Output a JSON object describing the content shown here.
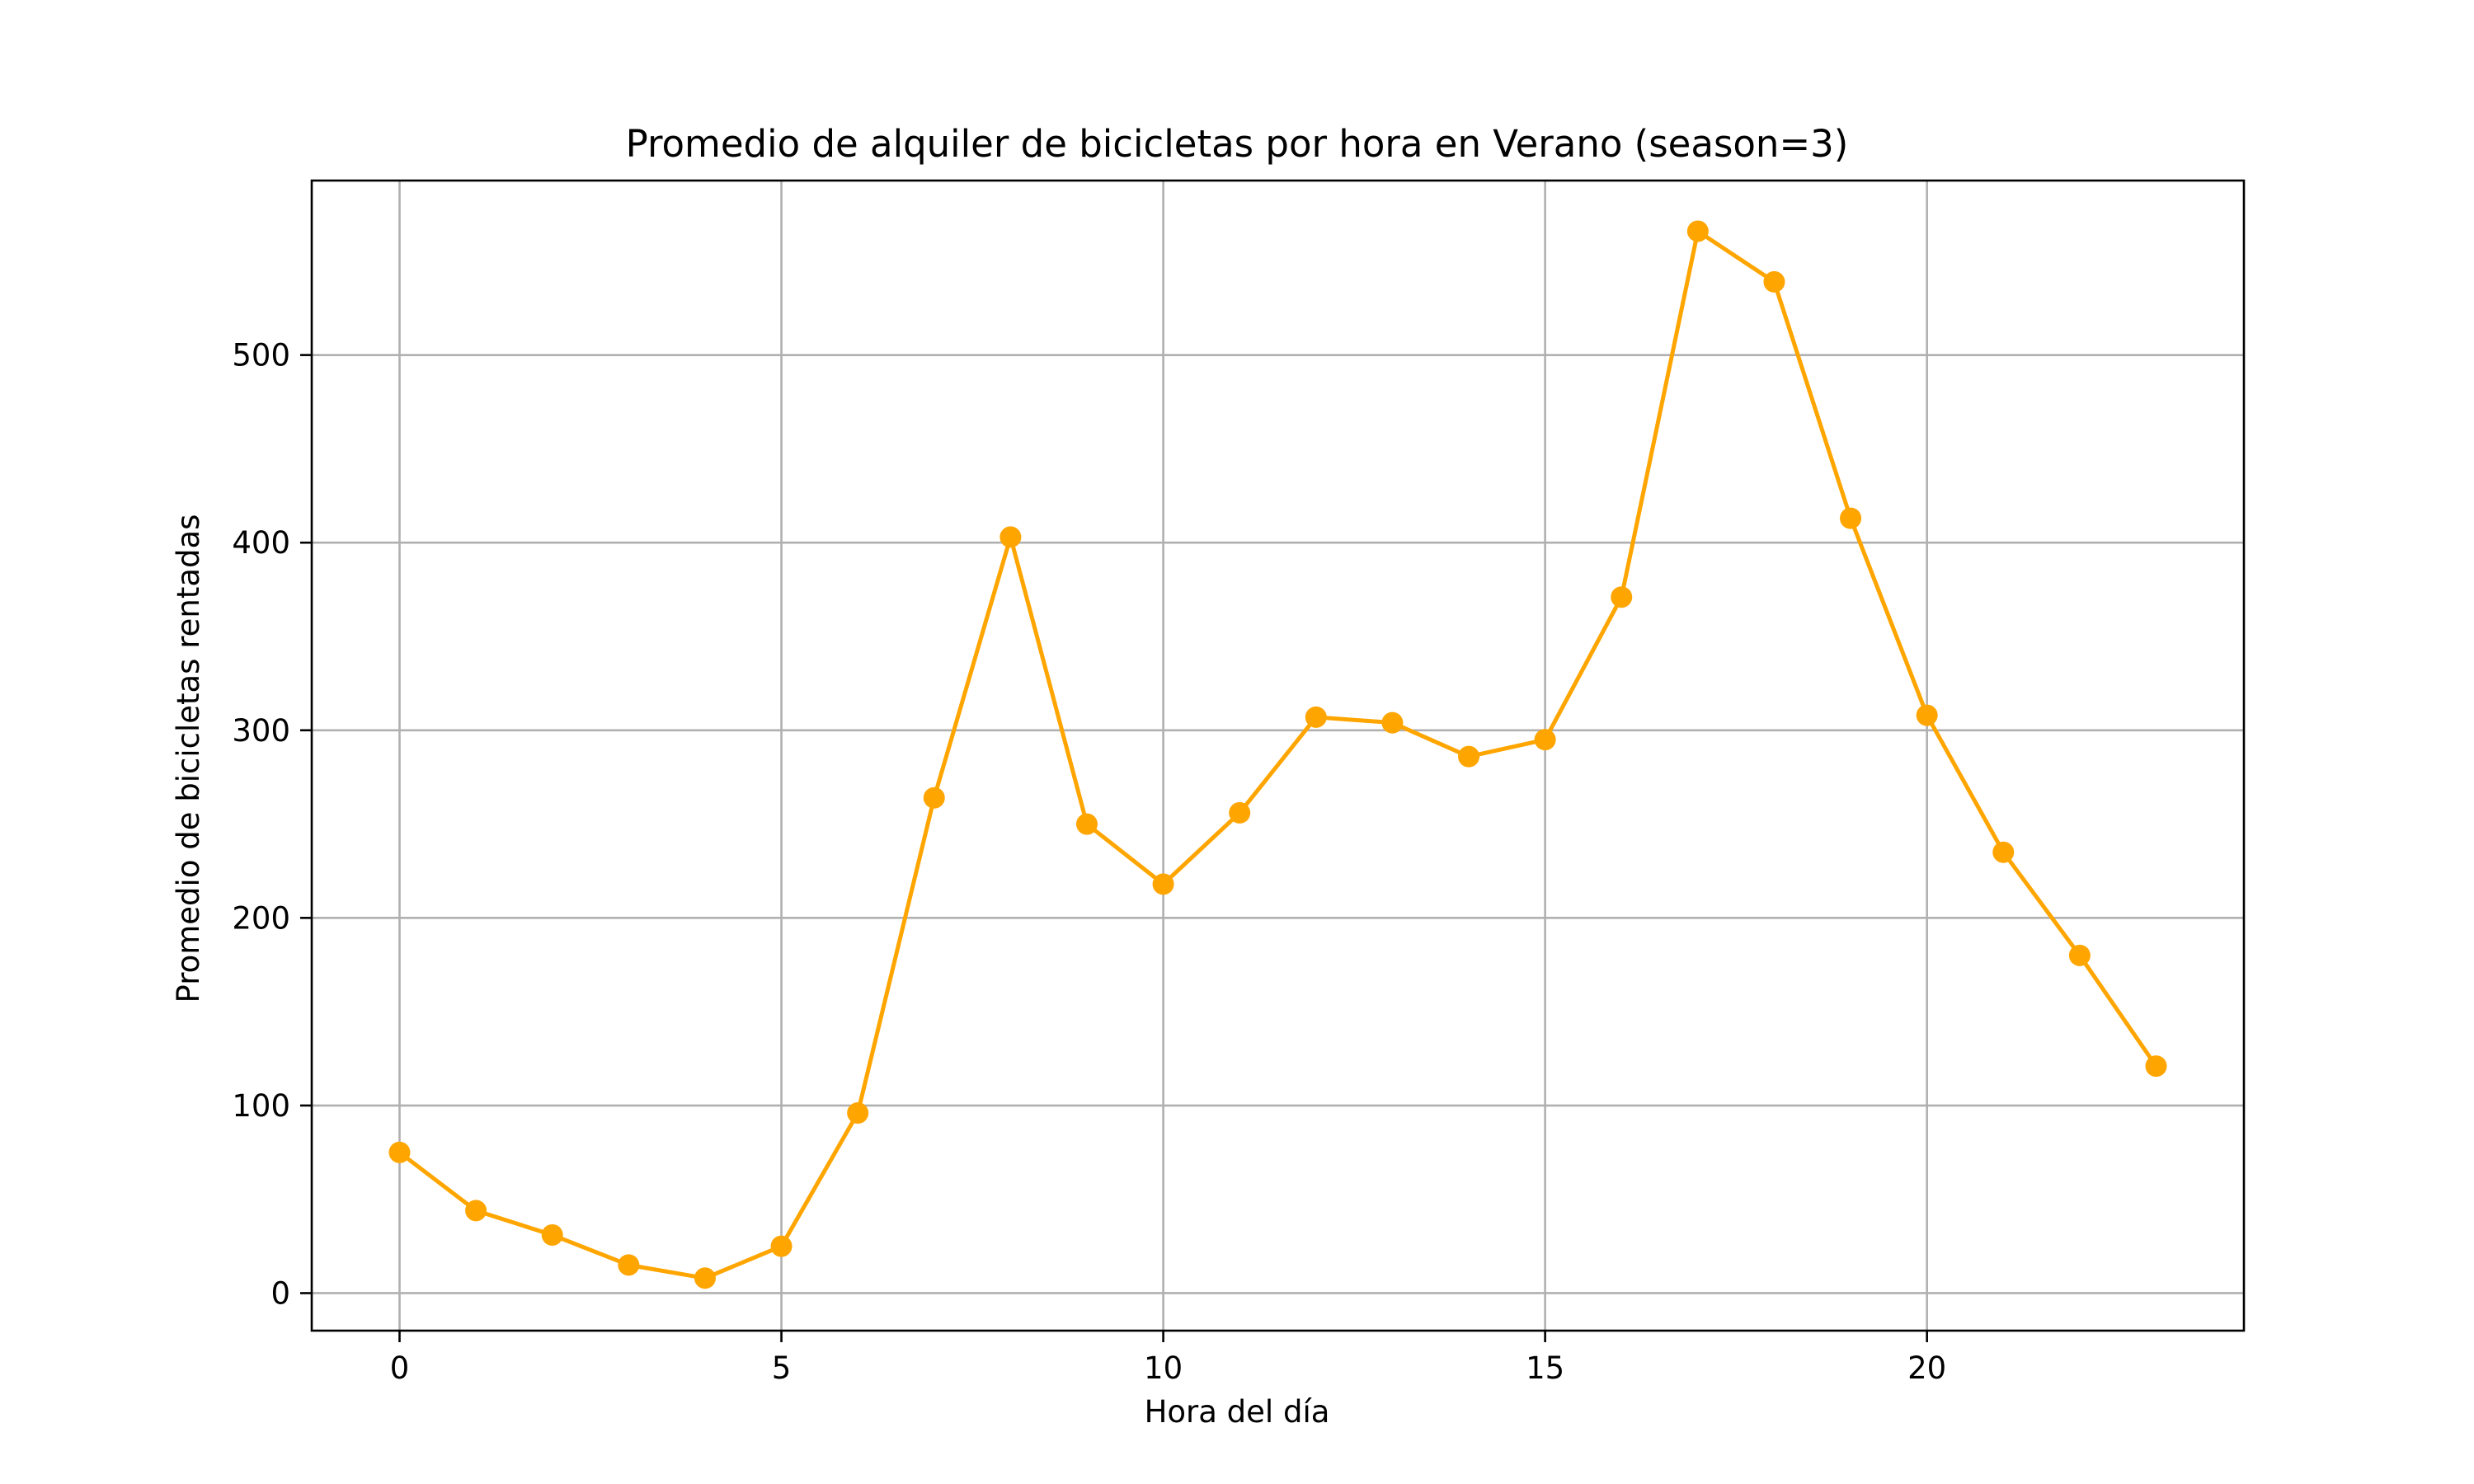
{
  "colors": {
    "series": "#ffa500",
    "grid": "#b0b0b0",
    "axis": "#000000",
    "background": "#ffffff"
  },
  "chart_data": {
    "type": "line",
    "title": "Promedio de alquiler de bicicletas por hora en Verano (season=3)",
    "xlabel": "Hora del día",
    "ylabel": "Promedio de bicicletas rentadas",
    "xlim": [
      -1.15,
      24.15
    ],
    "ylim": [
      -20,
      593
    ],
    "xticks": [
      0,
      5,
      10,
      15,
      20
    ],
    "yticks": [
      0,
      100,
      200,
      300,
      400,
      500
    ],
    "grid": true,
    "marker": "circle",
    "series": [
      {
        "x": [
          0,
          1,
          2,
          3,
          4,
          5,
          6,
          7,
          8,
          9,
          10,
          11,
          12,
          13,
          14,
          15,
          16,
          17,
          18,
          19,
          20,
          21,
          22,
          23
        ],
        "y": [
          75,
          44,
          31,
          15,
          8,
          25,
          96,
          264,
          403,
          250,
          218,
          256,
          307,
          304,
          286,
          295,
          371,
          566,
          539,
          413,
          308,
          235,
          180,
          121
        ]
      }
    ]
  }
}
